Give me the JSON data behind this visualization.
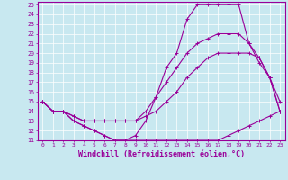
{
  "xlabel": "Windchill (Refroidissement éolien,°C)",
  "x": [
    0,
    1,
    2,
    3,
    4,
    5,
    6,
    7,
    8,
    9,
    10,
    11,
    12,
    13,
    14,
    15,
    16,
    17,
    18,
    19,
    20,
    21,
    22,
    23
  ],
  "line_arch": [
    15,
    14,
    14,
    13,
    12.5,
    12,
    11.5,
    11,
    11,
    11.5,
    13,
    15.5,
    18.5,
    20,
    23.5,
    25,
    25,
    25,
    25,
    25,
    21,
    19,
    17.5,
    15
  ],
  "line_mid_upper": [
    15,
    14,
    14,
    13.5,
    13,
    13,
    13,
    13,
    13,
    13,
    14,
    15.5,
    17,
    18.5,
    20,
    21,
    21.5,
    22,
    22,
    22,
    21,
    19.5,
    17.5,
    14
  ],
  "line_mid_lower": [
    15,
    14,
    14,
    13.5,
    13,
    13,
    13,
    13,
    13,
    13,
    13.5,
    14,
    15,
    16,
    17.5,
    18.5,
    19.5,
    20,
    20,
    20,
    20,
    19.5,
    17.5,
    14
  ],
  "line_bottom": [
    15,
    14,
    14,
    13,
    12.5,
    12,
    11.5,
    11,
    11,
    11,
    11,
    11,
    11,
    11,
    11,
    11,
    11,
    11,
    11.5,
    12,
    12.5,
    13,
    13.5,
    14
  ],
  "color": "#990099",
  "bg_color": "#c8e8f0",
  "grid_color": "#ffffff",
  "ylim": [
    11,
    25
  ],
  "xlim": [
    0,
    23
  ]
}
